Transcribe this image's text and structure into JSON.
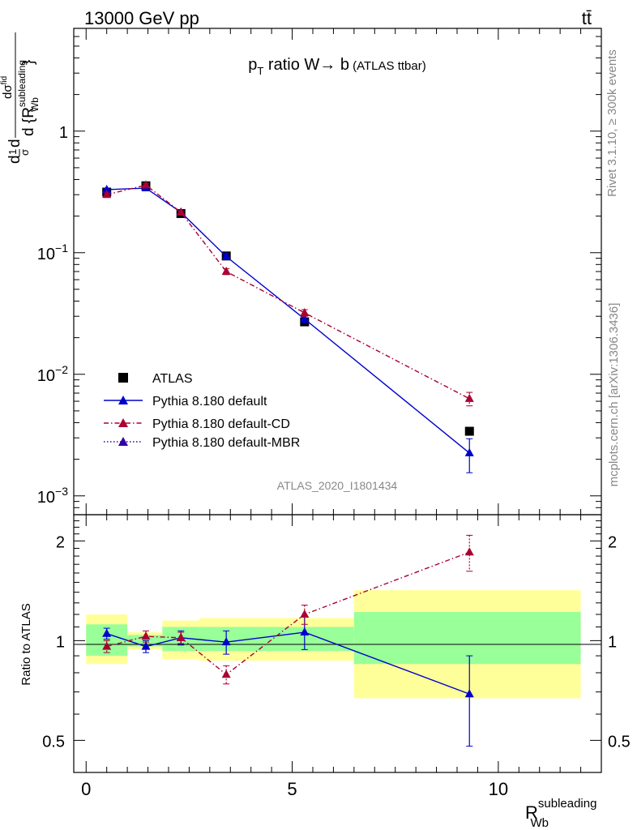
{
  "header": {
    "energy_label": "13000 GeV pp",
    "process_label": "tt̄"
  },
  "title": {
    "main": "p",
    "sub": "T",
    "rest": " ratio W→ b",
    "small": " (ATLAS ttbar)"
  },
  "side": {
    "rivet": "Rivet 3.1.10, ≥ 300k events",
    "mcplots": "mcplots.cern.ch [arXiv:1306.3436]"
  },
  "analysis_id": "ATLAS_2020_I1801434",
  "ylabel_top": {
    "frac_d": "d",
    "frac_1": "1",
    "frac_sigma": "σ",
    "d": "d",
    "num": "dσ",
    "num_sup": "fid",
    "den": "d {R",
    "den_sup": "subleading",
    "den_sub": "Wb",
    "den_close": "}"
  },
  "ylabel_ratio": "Ratio to ATLAS",
  "xlabel": {
    "main": "R",
    "sup": "subleading",
    "sub": "Wb"
  },
  "colors": {
    "data": "#000000",
    "default": "#0000cc",
    "cd": "#aa0033",
    "mbr": "#3300aa",
    "band_inner": "#99ff99",
    "band_outer": "#ffff99"
  },
  "chart_data": [
    {
      "type": "scatter",
      "panel": "main",
      "yscale": "log",
      "xlim": [
        -0.3,
        12.5
      ],
      "ylim": [
        0.0007,
        7
      ],
      "yticks": [
        {
          "v": 0.001,
          "b": "10",
          "e": "−3"
        },
        {
          "v": 0.01,
          "b": "10",
          "e": "−2"
        },
        {
          "v": 0.1,
          "b": "10",
          "e": "−1"
        },
        {
          "v": 1,
          "b": "1",
          "e": ""
        }
      ],
      "series": [
        {
          "name": "ATLAS",
          "style": "data",
          "x": [
            0.5,
            1.45,
            2.3,
            3.4,
            5.3,
            9.3
          ],
          "y": [
            0.315,
            0.355,
            0.21,
            0.094,
            0.027,
            0.0034
          ],
          "yerr": [
            0.01,
            0.01,
            0.007,
            0.004,
            0.0012,
            0.00015
          ]
        },
        {
          "name": "Pythia 8.180 default",
          "style": "solid",
          "x": [
            0.5,
            1.45,
            2.3,
            3.4,
            5.3,
            9.3
          ],
          "y": [
            0.33,
            0.34,
            0.215,
            0.093,
            0.0285,
            0.00225
          ],
          "yerr": [
            0.008,
            0.008,
            0.006,
            0.005,
            0.002,
            0.0007
          ]
        },
        {
          "name": "Pythia 8.180 default-CD",
          "style": "dashdot",
          "x": [
            0.5,
            1.45,
            2.3,
            3.4,
            5.3,
            9.3
          ],
          "y": [
            0.3,
            0.36,
            0.215,
            0.07,
            0.032,
            0.0063
          ],
          "yerr": [
            0.01,
            0.01,
            0.006,
            0.004,
            0.002,
            0.0008
          ]
        },
        {
          "name": "Pythia 8.180 default-MBR",
          "style": "dotted",
          "x": [],
          "y": [],
          "yerr": []
        }
      ],
      "legend": [
        "ATLAS",
        "Pythia 8.180 default",
        "Pythia 8.180 default-CD",
        "Pythia 8.180 default-MBR"
      ]
    },
    {
      "type": "scatter",
      "panel": "ratio",
      "yscale": "log",
      "xlim": [
        -0.3,
        12.5
      ],
      "ylim": [
        0.4,
        2.4
      ],
      "yticks": [
        0.5,
        1,
        2
      ],
      "xticks": [
        0,
        5,
        10
      ],
      "bands": [
        {
          "x0": 0.0,
          "x1": 1.0,
          "inner": [
            0.9,
            1.12
          ],
          "outer": [
            0.85,
            1.2
          ]
        },
        {
          "x0": 1.0,
          "x1": 1.85,
          "inner": [
            0.96,
            1.04
          ],
          "outer": [
            0.94,
            1.06
          ]
        },
        {
          "x0": 1.85,
          "x1": 2.75,
          "inner": [
            0.93,
            1.1
          ],
          "outer": [
            0.88,
            1.15
          ]
        },
        {
          "x0": 2.75,
          "x1": 6.5,
          "inner": [
            0.93,
            1.1
          ],
          "outer": [
            0.87,
            1.17
          ]
        },
        {
          "x0": 6.5,
          "x1": 12.0,
          "inner": [
            0.85,
            1.22
          ],
          "outer": [
            0.67,
            1.42
          ]
        }
      ],
      "series": [
        {
          "name": "Pythia 8.180 default",
          "style": "solid",
          "x": [
            0.5,
            1.45,
            2.3,
            3.4,
            5.3,
            9.3
          ],
          "y": [
            1.05,
            0.96,
            1.02,
            0.99,
            1.06,
            0.69
          ],
          "yerr": [
            0.04,
            0.04,
            0.05,
            0.08,
            0.12,
            0.21
          ]
        },
        {
          "name": "Pythia 8.180 default-CD",
          "style": "dashdot",
          "x": [
            0.5,
            1.45,
            2.3,
            3.4,
            5.3,
            9.3
          ],
          "y": [
            0.96,
            1.03,
            1.02,
            0.79,
            1.2,
            1.85
          ],
          "yerr": [
            0.04,
            0.04,
            0.04,
            0.05,
            0.08,
            0.23
          ]
        }
      ]
    }
  ]
}
